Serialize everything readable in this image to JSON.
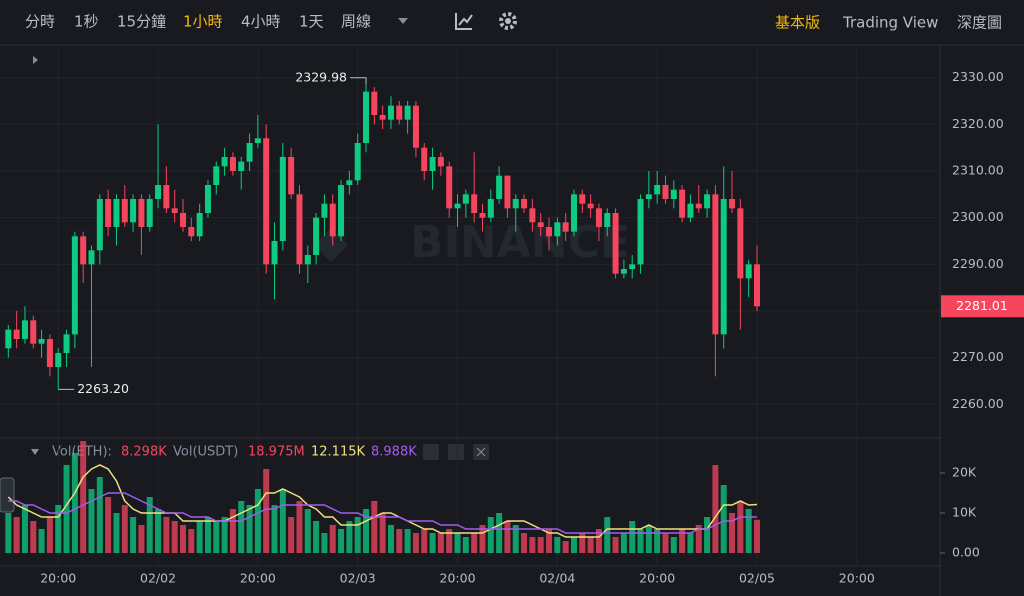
{
  "toolbar": {
    "intervals": [
      "分時",
      "1秒",
      "15分鐘",
      "1小時",
      "4小時",
      "1天",
      "周線"
    ],
    "active_interval": 3,
    "modes": [
      "基本版",
      "Trading View",
      "深度圖"
    ],
    "active_mode": 0
  },
  "chart_data": {
    "type": "candlestick",
    "watermark": "BINANCE",
    "grid": true,
    "up_color": "#0ecb81",
    "down_color": "#f6465d",
    "xlim": [
      -1,
      112
    ],
    "xticks": [
      {
        "value": 6,
        "label": "20:00"
      },
      {
        "value": 18,
        "label": "02/02"
      },
      {
        "value": 30,
        "label": "20:00"
      },
      {
        "value": 42,
        "label": "02/03"
      },
      {
        "value": 54,
        "label": "20:00"
      },
      {
        "value": 66,
        "label": "02/04"
      },
      {
        "value": 78,
        "label": "20:00"
      },
      {
        "value": 90,
        "label": "02/05"
      },
      {
        "value": 102,
        "label": "20:00"
      }
    ],
    "ylim": [
      2253,
      2337
    ],
    "yticks": [
      {
        "value": 2260,
        "label": "2260.00"
      },
      {
        "value": 2270,
        "label": "2270.00"
      },
      {
        "value": 2280,
        "label": "2280.00"
      },
      {
        "value": 2290,
        "label": "2290.00"
      },
      {
        "value": 2300,
        "label": "2300.00"
      },
      {
        "value": 2310,
        "label": "2310.00"
      },
      {
        "value": 2320,
        "label": "2320.00"
      },
      {
        "value": 2330,
        "label": "2330.00"
      }
    ],
    "open": [
      2272,
      2276,
      2274,
      2278,
      2273,
      2274,
      2268,
      2271,
      2275,
      2296,
      2290,
      2293,
      2304,
      2298,
      2304,
      2299,
      2304,
      2298,
      2304,
      2307,
      2302,
      2301,
      2298,
      2296,
      2301,
      2307,
      2311,
      2313,
      2310,
      2312,
      2316,
      2317,
      2290,
      2295,
      2313,
      2305,
      2290,
      2292,
      2300,
      2303,
      2296,
      2307,
      2308,
      2316,
      2327,
      2322,
      2321,
      2324,
      2321,
      2324,
      2315,
      2310,
      2313,
      2311,
      2302,
      2303,
      2305,
      2301,
      2300,
      2304,
      2309,
      2302,
      2304,
      2302,
      2299,
      2298,
      2296,
      2299,
      2297,
      2305,
      2303,
      2302,
      2298,
      2301,
      2288,
      2289,
      2290,
      2304,
      2305,
      2307,
      2304,
      2306,
      2300,
      2303,
      2302,
      2305,
      2275,
      2304,
      2302,
      2287,
      2290
    ],
    "high": [
      2277,
      2280,
      2281,
      2279,
      2276,
      2275,
      2272,
      2276,
      2297,
      2297,
      2294,
      2305,
      2306,
      2305,
      2307,
      2305,
      2305,
      2305,
      2320,
      2311,
      2306,
      2304,
      2300,
      2303,
      2308,
      2312,
      2315,
      2314,
      2313,
      2318,
      2322,
      2320,
      2299,
      2316,
      2315,
      2307,
      2294,
      2301,
      2305,
      2305,
      2308,
      2310,
      2318,
      2329.98,
      2328,
      2324,
      2326,
      2325,
      2325,
      2325,
      2316,
      2315,
      2314,
      2312,
      2305,
      2306,
      2314,
      2303,
      2306,
      2311,
      2309,
      2305,
      2305,
      2304,
      2301,
      2300,
      2300,
      2301,
      2306,
      2306,
      2305,
      2303,
      2302,
      2302,
      2291,
      2292,
      2305,
      2310,
      2310,
      2309,
      2308,
      2307,
      2305,
      2307,
      2306,
      2307,
      2311,
      2310,
      2304,
      2291,
      2294
    ],
    "low": [
      2270,
      2272,
      2273,
      2272,
      2270,
      2266,
      2263.2,
      2268,
      2272,
      2286,
      2268,
      2290,
      2296,
      2294,
      2298,
      2297,
      2292,
      2297,
      2302,
      2301,
      2299,
      2297,
      2295,
      2295,
      2300,
      2305,
      2309,
      2309,
      2306,
      2310,
      2315,
      2288,
      2282.5,
      2293,
      2304,
      2288,
      2286,
      2290,
      2296,
      2294,
      2295,
      2305,
      2307,
      2314,
      2320,
      2319,
      2319,
      2320,
      2318,
      2313,
      2308,
      2306,
      2309,
      2300,
      2298,
      2300,
      2299,
      2297,
      2299,
      2303,
      2300,
      2297,
      2301,
      2297,
      2296,
      2293,
      2294,
      2295,
      2296,
      2301,
      2300,
      2295,
      2296,
      2287,
      2287,
      2287,
      2288,
      2302,
      2303,
      2303,
      2302,
      2299,
      2299,
      2301,
      2300,
      2266,
      2272,
      2301,
      2276,
      2283,
      2280
    ],
    "close": [
      2276,
      2274,
      2278,
      2273,
      2274,
      2268,
      2271,
      2275,
      2296,
      2290,
      2293,
      2304,
      2298,
      2304,
      2299,
      2304,
      2298,
      2304,
      2307,
      2302,
      2301,
      2298,
      2296,
      2301,
      2307,
      2311,
      2313,
      2310,
      2312,
      2316,
      2317,
      2290,
      2295,
      2313,
      2305,
      2290,
      2292,
      2300,
      2303,
      2296,
      2307,
      2308,
      2316,
      2327,
      2322,
      2321,
      2324,
      2321,
      2324,
      2315,
      2310,
      2313,
      2311,
      2302,
      2303,
      2305,
      2301,
      2300,
      2304,
      2309,
      2302,
      2304,
      2302,
      2299,
      2298,
      2296,
      2299,
      2297,
      2305,
      2303,
      2302,
      2298,
      2301,
      2288,
      2289,
      2290,
      2304,
      2305,
      2307,
      2304,
      2306,
      2300,
      2303,
      2302,
      2305,
      2275,
      2304,
      2302,
      2287,
      2290,
      2281.01
    ],
    "high_label": "2329.98",
    "low_label": "2263.20",
    "last_price_label": "2281.01",
    "volume": {
      "name": "Vol(ETH):",
      "value_label": "8.298K",
      "ylim": [
        -3000,
        28250
      ],
      "yticks": [
        {
          "value": 20000,
          "label": "20K"
        },
        {
          "value": 10000,
          "label": "10K"
        },
        {
          "value": 0,
          "label": "0.00"
        }
      ],
      "values": [
        10000,
        9000,
        12000,
        8000,
        6000,
        9000,
        12000,
        22000,
        25000,
        28000,
        16000,
        19000,
        14000,
        10000,
        12000,
        9000,
        7000,
        14000,
        11000,
        9000,
        8000,
        7000,
        6000,
        8000,
        9000,
        8000,
        9000,
        11000,
        13000,
        12000,
        16000,
        21000,
        12000,
        16000,
        9000,
        13000,
        11000,
        8000,
        5000,
        7000,
        6000,
        8000,
        9000,
        11000,
        13000,
        10000,
        7000,
        6000,
        6000,
        5000,
        6000,
        5000,
        5000,
        6000,
        5000,
        4000,
        5000,
        7000,
        9000,
        10000,
        8000,
        7000,
        5000,
        4000,
        4000,
        6000,
        4000,
        3000,
        4000,
        5000,
        4000,
        6000,
        9000,
        4000,
        5000,
        8000,
        6000,
        7000,
        6000,
        5000,
        4000,
        6000,
        5000,
        7000,
        9000,
        22000,
        17000,
        10000,
        13000,
        11000,
        8298
      ],
      "ma": [
        {
          "color": "#f0e27a",
          "value_label": "12.115K",
          "values": [
            14000,
            12000,
            11000,
            10000,
            9000,
            9000,
            9000,
            12000,
            15000,
            19000,
            21000,
            22000,
            21000,
            18000,
            13000,
            11000,
            10000,
            10000,
            10000,
            10000,
            10000,
            8000,
            8000,
            8000,
            8000,
            8000,
            8000,
            9000,
            10000,
            11000,
            12000,
            15000,
            15000,
            16000,
            15000,
            14000,
            12000,
            11000,
            9000,
            9000,
            7000,
            7000,
            7000,
            8000,
            9000,
            10000,
            10000,
            9000,
            8000,
            7000,
            6000,
            6000,
            5000,
            5000,
            5000,
            5000,
            5000,
            5000,
            6000,
            7000,
            8000,
            8000,
            8000,
            7000,
            6000,
            5000,
            5000,
            4000,
            4000,
            4000,
            4000,
            4000,
            6000,
            6000,
            6000,
            6000,
            6000,
            7000,
            6000,
            6000,
            6000,
            6000,
            6000,
            6000,
            6000,
            9000,
            12000,
            12000,
            13000,
            12000,
            12115
          ]
        },
        {
          "color": "#a35cf0",
          "value_label": "8.988K",
          "values": [
            13000,
            13000,
            12000,
            12000,
            11000,
            10000,
            10000,
            10000,
            11000,
            12000,
            13000,
            14000,
            15000,
            15000,
            15000,
            14000,
            13000,
            12000,
            11000,
            10000,
            10000,
            10000,
            9000,
            9000,
            9000,
            8000,
            8000,
            8000,
            8000,
            9000,
            10000,
            11000,
            11000,
            12000,
            12000,
            12000,
            12000,
            12000,
            12000,
            11000,
            10000,
            10000,
            10000,
            9000,
            9000,
            9000,
            9000,
            9000,
            8000,
            8000,
            8000,
            8000,
            7000,
            7000,
            7000,
            6000,
            6000,
            6000,
            6000,
            6000,
            6000,
            6000,
            6000,
            6000,
            6000,
            6000,
            6000,
            5000,
            5000,
            5000,
            5000,
            5000,
            5000,
            5000,
            5000,
            5000,
            5000,
            5000,
            5000,
            5000,
            5000,
            5000,
            5000,
            6000,
            6000,
            7000,
            8000,
            8000,
            9000,
            9000,
            8988
          ]
        }
      ]
    },
    "volume_usdt": {
      "name": "Vol(USDT)",
      "value": 18975000,
      "value_label": "18.975M"
    }
  }
}
